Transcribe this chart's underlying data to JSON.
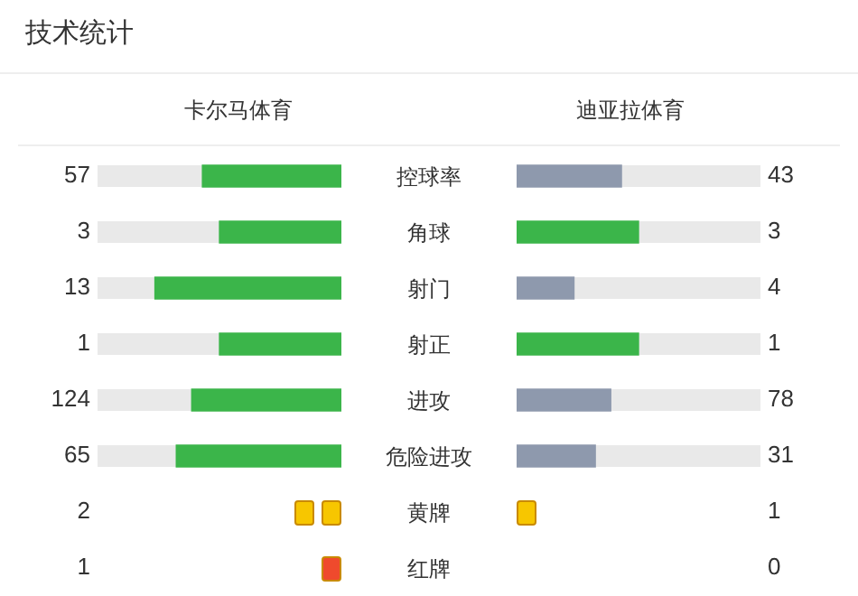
{
  "chart_data": {
    "type": "other",
    "title": "技术统计",
    "categories": [
      "控球率",
      "角球",
      "射门",
      "射正",
      "进攻",
      "危险进攻",
      "黄牌",
      "红牌"
    ],
    "series": [
      {
        "name": "卡尔马体育",
        "values": [
          57,
          3,
          13,
          1,
          124,
          65,
          2,
          1
        ],
        "colors": [
          "#3bb54a",
          "#3bb54a",
          "#3bb54a",
          "#3bb54a",
          "#3bb54a",
          "#3bb54a",
          "#f7c600",
          "#ef4a2d"
        ]
      },
      {
        "name": "迪亚拉体育",
        "values": [
          43,
          3,
          4,
          1,
          78,
          31,
          1,
          0
        ],
        "colors": [
          "#8e99ad",
          "#3bb54a",
          "#8e99ad",
          "#3bb54a",
          "#8e99ad",
          "#8e99ad",
          "#f7c600",
          "#ef4a2d"
        ]
      }
    ],
    "data_labels": true
  }
}
